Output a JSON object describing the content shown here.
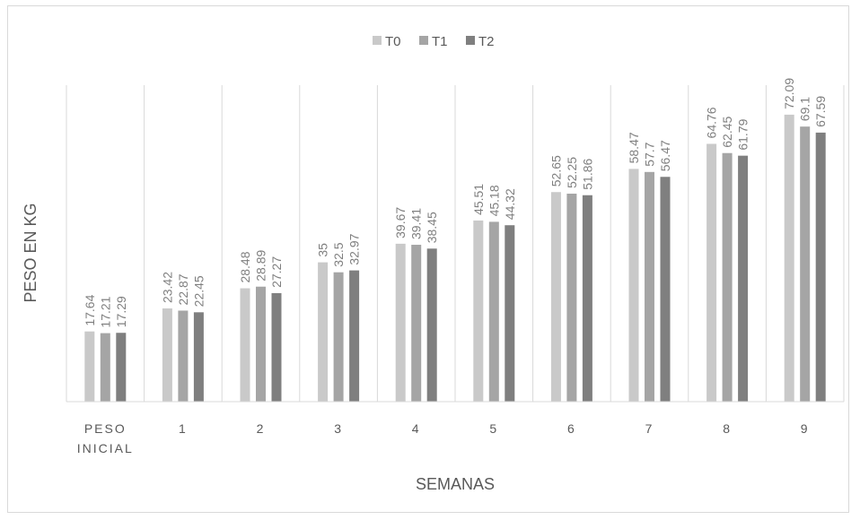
{
  "chart_data": {
    "type": "bar",
    "title": "",
    "xlabel": "SEMANAS",
    "ylabel": "PESO EN KG",
    "categories": [
      "PESO INICIAL",
      "1",
      "2",
      "3",
      "4",
      "5",
      "6",
      "7",
      "8",
      "9"
    ],
    "series": [
      {
        "name": "T0",
        "color": "#c9c9c9",
        "values": [
          17.64,
          23.42,
          28.48,
          35,
          39.67,
          45.51,
          52.65,
          58.47,
          64.76,
          72.09
        ]
      },
      {
        "name": "T1",
        "color": "#a5a5a5",
        "values": [
          17.21,
          22.87,
          28.89,
          32.5,
          39.41,
          45.18,
          52.25,
          57.7,
          62.45,
          69.1
        ]
      },
      {
        "name": "T2",
        "color": "#7f7f7f",
        "values": [
          17.29,
          22.45,
          27.27,
          32.97,
          38.45,
          44.32,
          51.86,
          56.47,
          61.79,
          67.59
        ]
      }
    ],
    "ylim": [
      0,
      80
    ],
    "grid": "vertical category separators",
    "legend": "top-center"
  }
}
